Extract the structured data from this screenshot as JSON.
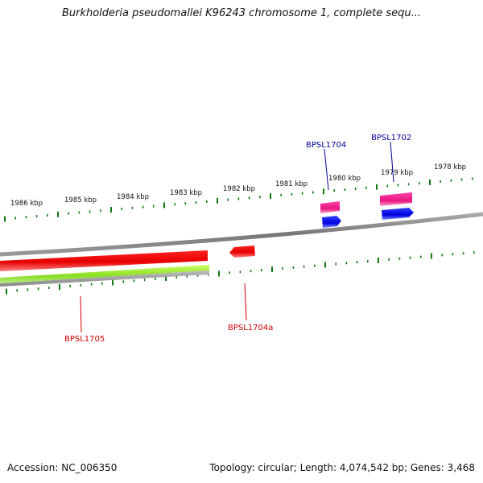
{
  "title": "Burkholderia pseudomallei K96243 chromosome 1, complete sequ...",
  "footer": {
    "accession": "Accession: NC_006350",
    "topology": "Topology: circular; Length: 4,074,542 bp; Genes: 3,468"
  },
  "kbp_labels": [
    "1986 kbp",
    "1985 kbp",
    "1984 kbp",
    "1983 kbp",
    "1982 kbp",
    "1981 kbp",
    "1980 kbp",
    "1979 kbp",
    "1978 kbp"
  ],
  "genes": [
    {
      "label": "BPSL1705",
      "color": "#cc0000"
    },
    {
      "label": "BPSL1704a",
      "color": "#cc0000"
    },
    {
      "label": "BPSL1704",
      "color": "#000099"
    },
    {
      "label": "BPSL1702",
      "color": "#000099"
    }
  ],
  "colors": {
    "ticks": "#117711",
    "backbone": "#777777",
    "forward_gene": "#ee1111",
    "orf": "#99ee33",
    "pink_feature": "#ee2288",
    "blue_feature": "#0000dd"
  }
}
